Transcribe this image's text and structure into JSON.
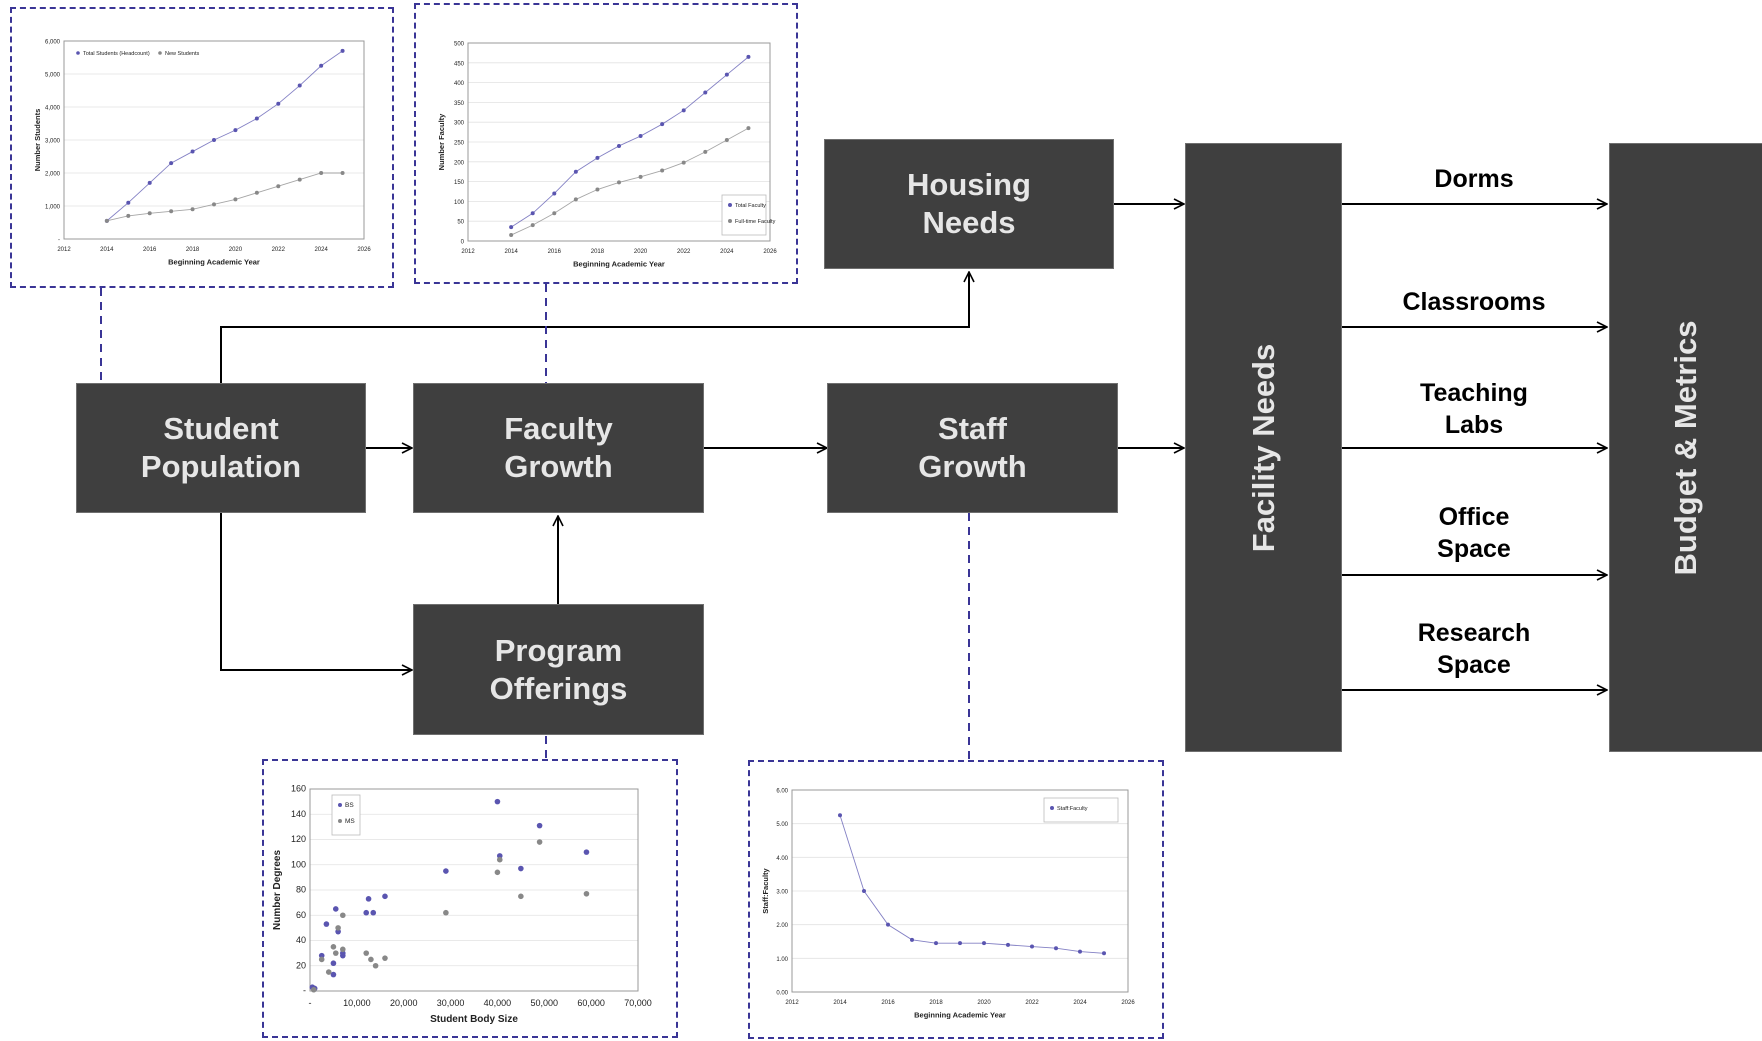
{
  "nodes": {
    "student_population": [
      "Student",
      "Population"
    ],
    "faculty_growth": [
      "Faculty",
      "Growth"
    ],
    "staff_growth": [
      "Staff",
      "Growth"
    ],
    "housing_needs": [
      "Housing",
      "Needs"
    ],
    "program_offerings": [
      "Program",
      "Offerings"
    ],
    "facility_needs": "Facility Needs",
    "budget_metrics": "Budget & Metrics"
  },
  "outputs": [
    [
      "Dorms"
    ],
    [
      "Classrooms"
    ],
    [
      "Teaching",
      "Labs"
    ],
    [
      "Office",
      "Space"
    ],
    [
      "Research",
      "Space"
    ]
  ],
  "colors": {
    "box": "#3f3f3f",
    "dashed": "#3a3596",
    "series_primary": "#5a55b0",
    "series_secondary": "#888888"
  },
  "chart_data": [
    {
      "type": "line",
      "xlabel": "Beginning Academic Year",
      "ylabel": "Number Students",
      "xlim": [
        2012,
        2026
      ],
      "ylim": [
        0,
        6000
      ],
      "xticks": [
        "2012",
        "2014",
        "2016",
        "2018",
        "2020",
        "2022",
        "2024",
        "2026"
      ],
      "yticks": [
        "-",
        "1,000",
        "2,000",
        "3,000",
        "4,000",
        "5,000",
        "6,000"
      ],
      "series": [
        {
          "name": "Total Students (Headcount)",
          "x": [
            2014,
            2015,
            2016,
            2017,
            2018,
            2019,
            2020,
            2021,
            2022,
            2023,
            2024,
            2025
          ],
          "values": [
            550,
            1100,
            1700,
            2300,
            2650,
            3000,
            3300,
            3650,
            4100,
            4650,
            5250,
            5700
          ]
        },
        {
          "name": "New Students",
          "x": [
            2014,
            2015,
            2016,
            2017,
            2018,
            2019,
            2020,
            2021,
            2022,
            2023,
            2024,
            2025
          ],
          "values": [
            550,
            700,
            780,
            840,
            900,
            1050,
            1200,
            1400,
            1600,
            1800,
            2000,
            2000
          ]
        }
      ],
      "legend": "top-left"
    },
    {
      "type": "line",
      "xlabel": "Beginning Academic Year",
      "ylabel": "Number Faculty",
      "xlim": [
        2012,
        2026
      ],
      "ylim": [
        0,
        500
      ],
      "xticks": [
        "2012",
        "2014",
        "2016",
        "2018",
        "2020",
        "2022",
        "2024",
        "2026"
      ],
      "yticks": [
        "0",
        "50",
        "100",
        "150",
        "200",
        "250",
        "300",
        "350",
        "400",
        "450",
        "500"
      ],
      "series": [
        {
          "name": "Total Faculty",
          "x": [
            2014,
            2015,
            2016,
            2017,
            2018,
            2019,
            2020,
            2021,
            2022,
            2023,
            2024,
            2025
          ],
          "values": [
            35,
            70,
            120,
            175,
            210,
            240,
            265,
            295,
            330,
            375,
            420,
            465
          ]
        },
        {
          "name": "Full-time Faculty",
          "x": [
            2014,
            2015,
            2016,
            2017,
            2018,
            2019,
            2020,
            2021,
            2022,
            2023,
            2024,
            2025
          ],
          "values": [
            15,
            40,
            70,
            105,
            130,
            148,
            162,
            178,
            198,
            225,
            255,
            285
          ]
        }
      ],
      "legend": "bottom-right"
    },
    {
      "type": "scatter",
      "xlabel": "Student Body Size",
      "ylabel": "Number Degrees",
      "xlim": [
        0,
        70000
      ],
      "ylim": [
        0,
        160
      ],
      "xticks": [
        "-",
        "10,000",
        "20,000",
        "30,000",
        "40,000",
        "50,000",
        "60,000",
        "70,000"
      ],
      "yticks": [
        "-",
        "20",
        "40",
        "60",
        "80",
        "100",
        "120",
        "140",
        "160"
      ],
      "series": [
        {
          "name": "BS",
          "points": [
            [
              500,
              3
            ],
            [
              1000,
              2
            ],
            [
              2500,
              28
            ],
            [
              3500,
              53
            ],
            [
              5000,
              13
            ],
            [
              5000,
              22
            ],
            [
              5500,
              65
            ],
            [
              6000,
              47
            ],
            [
              7000,
              30
            ],
            [
              7000,
              28
            ],
            [
              12000,
              62
            ],
            [
              12500,
              73
            ],
            [
              13500,
              62
            ],
            [
              16000,
              75
            ],
            [
              29000,
              95
            ],
            [
              40000,
              150
            ],
            [
              40500,
              107
            ],
            [
              45000,
              97
            ],
            [
              49000,
              131
            ],
            [
              59000,
              110
            ]
          ]
        },
        {
          "name": "MS",
          "points": [
            [
              800,
              1
            ],
            [
              2500,
              25
            ],
            [
              4000,
              15
            ],
            [
              5000,
              35
            ],
            [
              5500,
              30
            ],
            [
              6000,
              50
            ],
            [
              7000,
              60
            ],
            [
              7000,
              33
            ],
            [
              12000,
              30
            ],
            [
              13000,
              25
            ],
            [
              14000,
              20
            ],
            [
              16000,
              26
            ],
            [
              29000,
              62
            ],
            [
              40000,
              94
            ],
            [
              40500,
              104
            ],
            [
              45000,
              75
            ],
            [
              49000,
              118
            ],
            [
              59000,
              77
            ]
          ]
        }
      ],
      "legend": "top-left"
    },
    {
      "type": "line",
      "xlabel": "Beginning Academic Year",
      "ylabel": "Staff:Faculty",
      "xlim": [
        2012,
        2026
      ],
      "ylim": [
        0,
        6
      ],
      "xticks": [
        "2012",
        "2014",
        "2016",
        "2018",
        "2020",
        "2022",
        "2024",
        "2026"
      ],
      "yticks": [
        "0.00",
        "1.00",
        "2.00",
        "3.00",
        "4.00",
        "5.00",
        "6.00"
      ],
      "series": [
        {
          "name": "Staff:Faculty",
          "x": [
            2014,
            2015,
            2016,
            2017,
            2018,
            2019,
            2020,
            2021,
            2022,
            2023,
            2024,
            2025
          ],
          "values": [
            5.25,
            3.0,
            2.0,
            1.55,
            1.45,
            1.45,
            1.45,
            1.4,
            1.35,
            1.3,
            1.2,
            1.15
          ]
        }
      ],
      "legend": "top-right"
    }
  ]
}
